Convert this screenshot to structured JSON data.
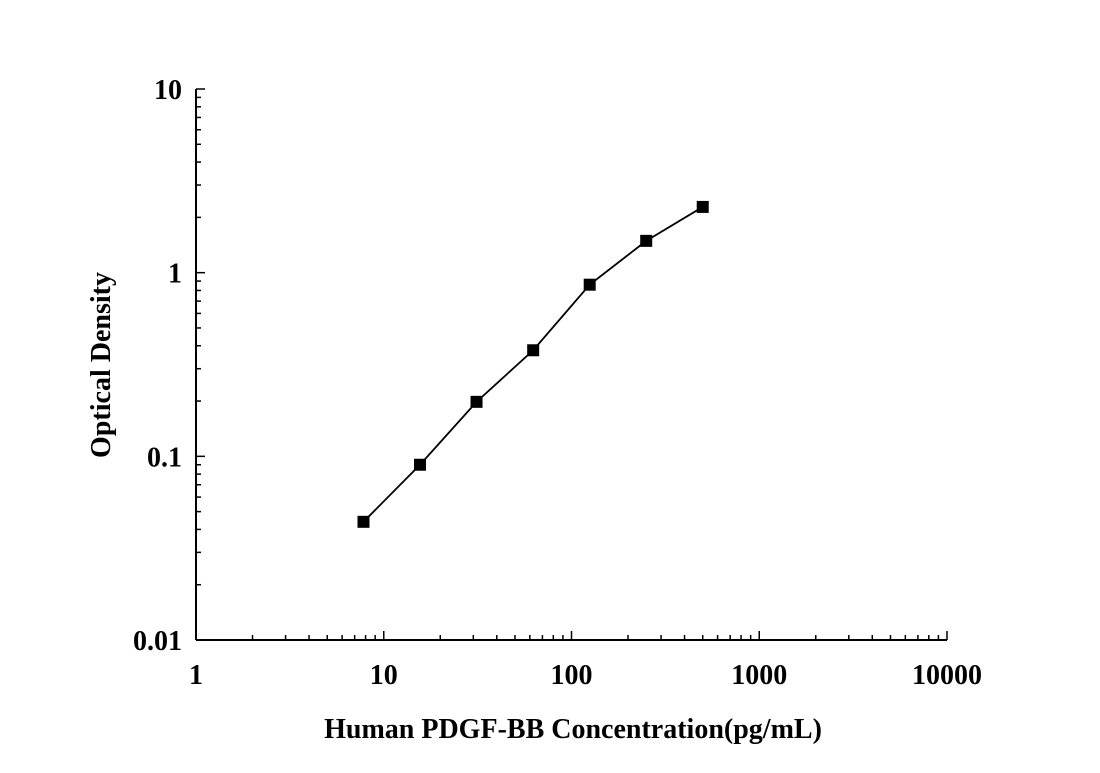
{
  "chart_data": {
    "type": "scatter",
    "title": "",
    "xlabel": "Human PDGF-BB Concentration(pg/mL)",
    "ylabel": "Optical Density",
    "xscale": "log",
    "yscale": "log",
    "xlim": [
      1,
      10000
    ],
    "ylim": [
      0.01,
      10
    ],
    "x_ticks": [
      1,
      10,
      100,
      1000,
      10000
    ],
    "x_tick_labels": [
      "1",
      "10",
      "100",
      "1000",
      "10000"
    ],
    "y_ticks": [
      0.01,
      0.1,
      1,
      10
    ],
    "y_tick_labels": [
      "0.01",
      "0.1",
      "1",
      "10"
    ],
    "grid": false,
    "legend": "none",
    "marker": "square",
    "line": "connected",
    "colors": {
      "series": "#000000",
      "axis": "#000000",
      "background": "#ffffff"
    },
    "series": [
      {
        "x": [
          7.8,
          15.6,
          31.2,
          62.5,
          125,
          250,
          500
        ],
        "y": [
          0.044,
          0.09,
          0.198,
          0.378,
          0.86,
          1.49,
          2.28
        ]
      }
    ]
  }
}
